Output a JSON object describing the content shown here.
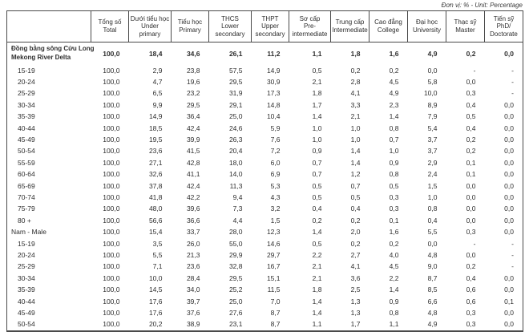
{
  "unit_note": "Đơn vị: % - Unit: Percentage",
  "table": {
    "columns": [
      {
        "lines": [
          "Tổng số",
          "Total"
        ]
      },
      {
        "lines": [
          "Dưới tiểu học",
          "Under",
          "primary"
        ]
      },
      {
        "lines": [
          "Tiểu học",
          "Primary"
        ]
      },
      {
        "lines": [
          "THCS",
          "Lower",
          "secondary"
        ]
      },
      {
        "lines": [
          "THPT",
          "Upper",
          "secondary"
        ]
      },
      {
        "lines": [
          "Sơ cấp",
          "Pre-",
          "intermediate"
        ]
      },
      {
        "lines": [
          "Trung cấp",
          "Intermediate"
        ]
      },
      {
        "lines": [
          "Cao đẳng",
          "College"
        ]
      },
      {
        "lines": [
          "Đại học",
          "University"
        ]
      },
      {
        "lines": [
          "Thạc sỹ",
          "Master"
        ]
      },
      {
        "lines": [
          "Tiến sỹ",
          "PhD/",
          "Doctorate"
        ]
      }
    ],
    "rows": [
      {
        "label_lines": [
          "Đồng bằng sông Cửu Long",
          "Mekong River Delta"
        ],
        "style": "region",
        "values": [
          "100,0",
          "18,4",
          "34,6",
          "26,1",
          "11,2",
          "1,1",
          "1,8",
          "1,6",
          "4,9",
          "0,2",
          "0,0"
        ]
      },
      {
        "label_lines": [
          "15-19"
        ],
        "style": "age",
        "values": [
          "100,0",
          "2,9",
          "23,8",
          "57,5",
          "14,9",
          "0,5",
          "0,2",
          "0,2",
          "0,0",
          "-",
          "-"
        ]
      },
      {
        "label_lines": [
          "20-24"
        ],
        "style": "age",
        "values": [
          "100,0",
          "4,7",
          "19,6",
          "29,5",
          "30,9",
          "2,1",
          "2,8",
          "4,5",
          "5,8",
          "0,0",
          "-"
        ]
      },
      {
        "label_lines": [
          "25-29"
        ],
        "style": "age",
        "values": [
          "100,0",
          "6,5",
          "23,2",
          "31,9",
          "17,3",
          "1,8",
          "4,1",
          "4,9",
          "10,0",
          "0,3",
          "-"
        ]
      },
      {
        "label_lines": [
          "30-34"
        ],
        "style": "age",
        "values": [
          "100,0",
          "9,9",
          "29,5",
          "29,1",
          "14,8",
          "1,7",
          "3,3",
          "2,3",
          "8,9",
          "0,4",
          "0,0"
        ]
      },
      {
        "label_lines": [
          "35-39"
        ],
        "style": "age",
        "values": [
          "100,0",
          "14,9",
          "36,4",
          "25,0",
          "10,4",
          "1,4",
          "2,1",
          "1,4",
          "7,9",
          "0,5",
          "0,0"
        ]
      },
      {
        "label_lines": [
          "40-44"
        ],
        "style": "age",
        "values": [
          "100,0",
          "18,5",
          "42,4",
          "24,6",
          "5,9",
          "1,0",
          "1,0",
          "0,8",
          "5,4",
          "0,4",
          "0,0"
        ]
      },
      {
        "label_lines": [
          "45-49"
        ],
        "style": "age",
        "values": [
          "100,0",
          "19,5",
          "39,9",
          "26,3",
          "7,6",
          "1,0",
          "1,0",
          "0,7",
          "3,7",
          "0,2",
          "0,0"
        ]
      },
      {
        "label_lines": [
          "50-54"
        ],
        "style": "age",
        "values": [
          "100,0",
          "23,6",
          "41,5",
          "20,4",
          "7,2",
          "0,9",
          "1,4",
          "1,0",
          "3,7",
          "0,2",
          "0,0"
        ]
      },
      {
        "label_lines": [
          "55-59"
        ],
        "style": "age",
        "values": [
          "100,0",
          "27,1",
          "42,8",
          "18,0",
          "6,0",
          "0,7",
          "1,4",
          "0,9",
          "2,9",
          "0,1",
          "0,0"
        ]
      },
      {
        "label_lines": [
          "60-64"
        ],
        "style": "age",
        "values": [
          "100,0",
          "32,6",
          "41,1",
          "14,0",
          "6,9",
          "0,7",
          "1,2",
          "0,8",
          "2,4",
          "0,1",
          "0,0"
        ]
      },
      {
        "label_lines": [
          "65-69"
        ],
        "style": "age",
        "values": [
          "100,0",
          "37,8",
          "42,4",
          "11,3",
          "5,3",
          "0,5",
          "0,7",
          "0,5",
          "1,5",
          "0,0",
          "0,0"
        ]
      },
      {
        "label_lines": [
          "70-74"
        ],
        "style": "age",
        "values": [
          "100,0",
          "41,8",
          "42,2",
          "9,4",
          "4,3",
          "0,5",
          "0,5",
          "0,3",
          "1,0",
          "0,0",
          "0,0"
        ]
      },
      {
        "label_lines": [
          "75-79"
        ],
        "style": "age",
        "values": [
          "100,0",
          "48,0",
          "39,6",
          "7,3",
          "3,2",
          "0,4",
          "0,4",
          "0,3",
          "0,8",
          "0,0",
          "0,0"
        ]
      },
      {
        "label_lines": [
          "80 +"
        ],
        "style": "age",
        "values": [
          "100,0",
          "56,6",
          "36,6",
          "4,4",
          "1,5",
          "0,2",
          "0,2",
          "0,1",
          "0,4",
          "0,0",
          "0,0"
        ]
      },
      {
        "label_lines": [
          "Nam - Male"
        ],
        "style": "group",
        "values": [
          "100,0",
          "15,4",
          "33,7",
          "28,0",
          "12,3",
          "1,4",
          "2,0",
          "1,6",
          "5,5",
          "0,3",
          "0,0"
        ]
      },
      {
        "label_lines": [
          "15-19"
        ],
        "style": "age",
        "values": [
          "100,0",
          "3,5",
          "26,0",
          "55,0",
          "14,6",
          "0,5",
          "0,2",
          "0,2",
          "0,0",
          "-",
          "-"
        ]
      },
      {
        "label_lines": [
          "20-24"
        ],
        "style": "age",
        "values": [
          "100,0",
          "5,5",
          "21,3",
          "29,9",
          "29,7",
          "2,2",
          "2,7",
          "4,0",
          "4,8",
          "0,0",
          "-"
        ]
      },
      {
        "label_lines": [
          "25-29"
        ],
        "style": "age",
        "values": [
          "100,0",
          "7,1",
          "23,6",
          "32,8",
          "16,7",
          "2,1",
          "4,1",
          "4,5",
          "9,0",
          "0,2",
          "-"
        ]
      },
      {
        "label_lines": [
          "30-34"
        ],
        "style": "age",
        "values": [
          "100,0",
          "10,0",
          "28,4",
          "29,5",
          "15,1",
          "2,1",
          "3,6",
          "2,2",
          "8,7",
          "0,4",
          "0,0"
        ]
      },
      {
        "label_lines": [
          "35-39"
        ],
        "style": "age",
        "values": [
          "100,0",
          "14,5",
          "34,0",
          "25,2",
          "11,5",
          "1,8",
          "2,5",
          "1,4",
          "8,5",
          "0,6",
          "0,0"
        ]
      },
      {
        "label_lines": [
          "40-44"
        ],
        "style": "age",
        "values": [
          "100,0",
          "17,6",
          "39,7",
          "25,0",
          "7,0",
          "1,4",
          "1,3",
          "0,9",
          "6,6",
          "0,6",
          "0,1"
        ]
      },
      {
        "label_lines": [
          "45-49"
        ],
        "style": "age",
        "values": [
          "100,0",
          "17,6",
          "37,6",
          "27,6",
          "8,7",
          "1,4",
          "1,3",
          "0,8",
          "4,8",
          "0,3",
          "0,0"
        ]
      },
      {
        "label_lines": [
          "50-54"
        ],
        "style": "age",
        "values": [
          "100,0",
          "20,2",
          "38,9",
          "23,1",
          "8,7",
          "1,1",
          "1,7",
          "1,1",
          "4,9",
          "0,3",
          "0,0"
        ]
      }
    ]
  }
}
